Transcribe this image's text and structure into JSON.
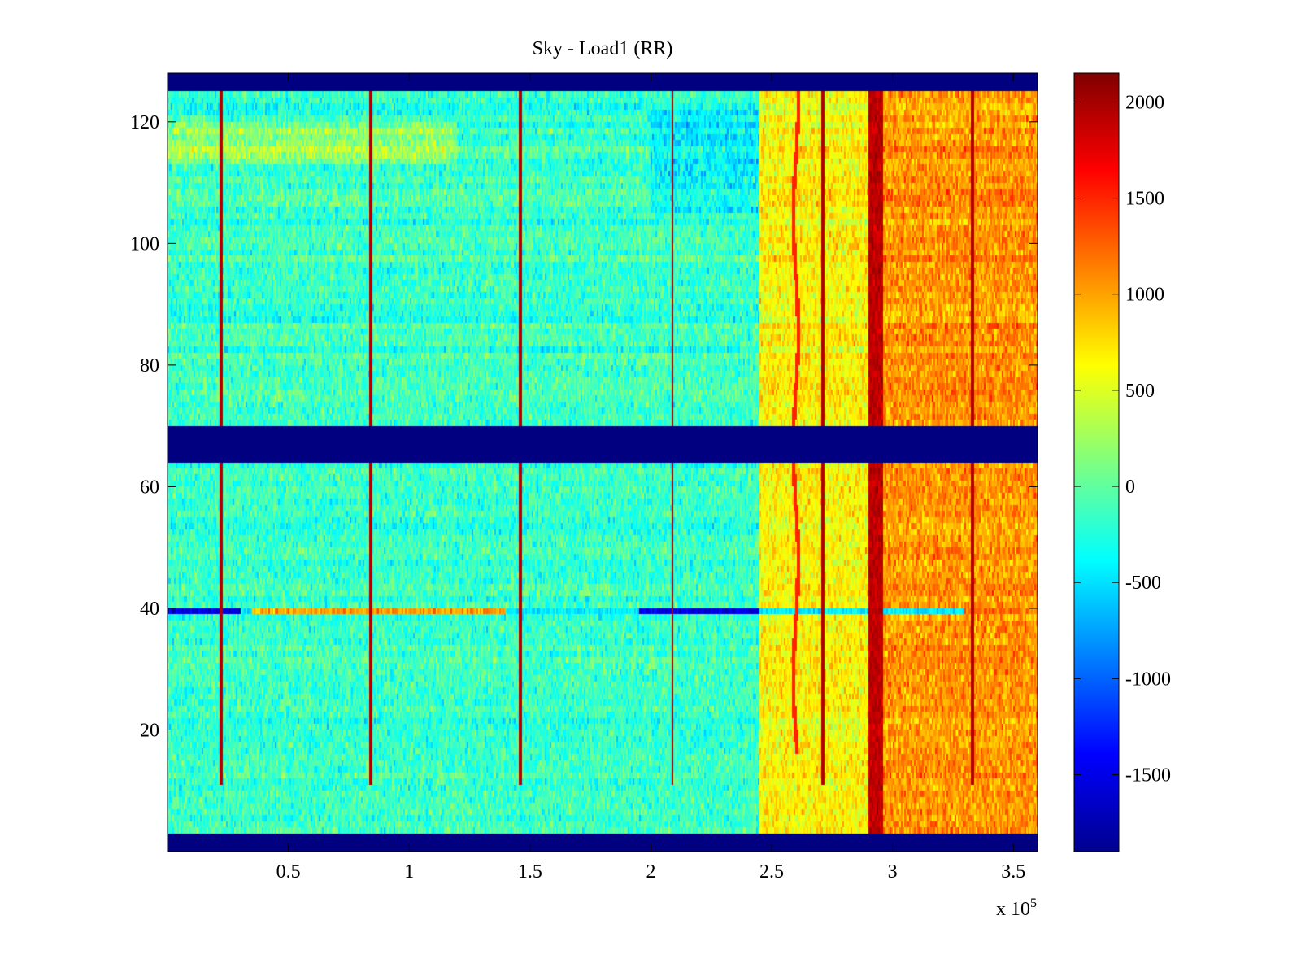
{
  "chart_data": {
    "type": "heatmap",
    "title": "Sky - Load1 (RR)",
    "xlabel": "",
    "ylabel": "",
    "x_multiplier": "x 10",
    "x_multiplier_exp": "5",
    "xlim": [
      0,
      3.6
    ],
    "ylim": [
      0,
      128
    ],
    "xticks": [
      0.5,
      1,
      1.5,
      2,
      2.5,
      3,
      3.5
    ],
    "xtick_labels": [
      "0.5",
      "1",
      "1.5",
      "2",
      "2.5",
      "3",
      "3.5"
    ],
    "yticks": [
      20,
      40,
      60,
      80,
      100,
      120
    ],
    "ytick_labels": [
      "20",
      "40",
      "60",
      "80",
      "100",
      "120"
    ],
    "colormap": "jet",
    "clim": [
      -1900,
      2150
    ],
    "colorbar_ticks": [
      2000,
      1500,
      1000,
      500,
      0,
      -500,
      -1000,
      -1500
    ],
    "colorbar_tick_labels": [
      "2000",
      "1500",
      "1000",
      "500",
      "0",
      "-500",
      "-1000",
      "-1500"
    ],
    "masked_rows": [
      [
        0,
        3
      ],
      [
        64,
        70
      ],
      [
        125,
        128
      ]
    ],
    "vertical_spikes_x": [
      0.22,
      0.84,
      1.46,
      2.09,
      2.71,
      3.33
    ],
    "step_regions": [
      {
        "x_from": 0,
        "x_to": 2.45,
        "level": -150
      },
      {
        "x_from": 2.45,
        "x_to": 2.9,
        "level": 650
      },
      {
        "x_from": 2.9,
        "x_to": 3.6,
        "level": 1050
      }
    ],
    "hot_column_x": 2.93,
    "horizontal_stripe_y": 39
  }
}
